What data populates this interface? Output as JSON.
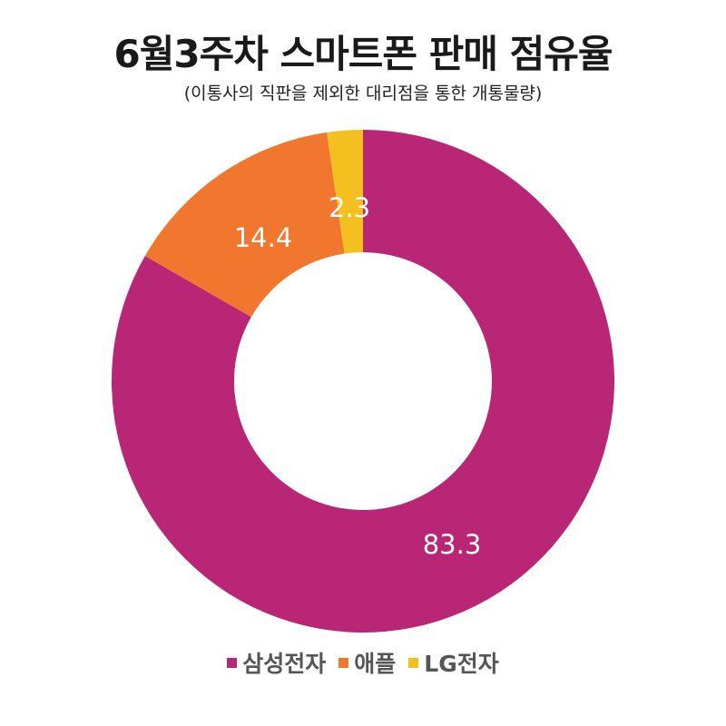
{
  "chart_data": {
    "type": "pie",
    "title": "6월3주차 스마트폰 판매 점유율",
    "subtitle": "(이통사의 직판을 제외한 대리점을 통한 개통물량)",
    "categories": [
      "삼성전자",
      "애플",
      "LG전자"
    ],
    "values": [
      83.3,
      14.4,
      2.3
    ],
    "value_labels": [
      "83.3",
      "14.4",
      "2.3"
    ],
    "colors": [
      "#b82675",
      "#f1762e",
      "#f4c020"
    ],
    "donut": true,
    "legend_position": "bottom"
  }
}
